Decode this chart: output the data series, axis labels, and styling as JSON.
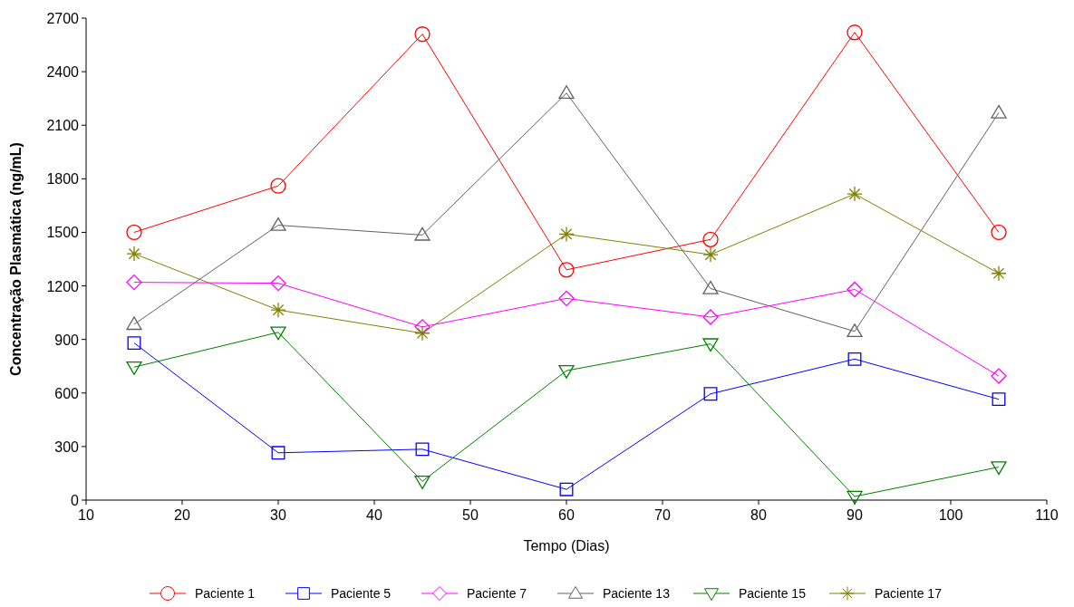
{
  "chart_data": {
    "type": "line",
    "xlabel": "Tempo (Dias)",
    "ylabel": "Concentração Plasmática (ng/mL)",
    "x": [
      15,
      30,
      45,
      60,
      75,
      90,
      105
    ],
    "xlim": [
      10,
      110
    ],
    "xticks": [
      10,
      20,
      30,
      40,
      50,
      60,
      70,
      80,
      90,
      100,
      110
    ],
    "ylim": [
      0,
      2700
    ],
    "yticks": [
      0,
      300,
      600,
      900,
      1200,
      1500,
      1800,
      2100,
      2400,
      2700
    ],
    "legend": "bottom",
    "grid": false,
    "series": [
      {
        "name": "Paciente 1",
        "color": "#ff0000",
        "marker": "circle",
        "values": [
          1500,
          1760,
          2610,
          1290,
          1460,
          2620,
          1500
        ]
      },
      {
        "name": "Paciente 5",
        "color": "#0000ff",
        "marker": "square",
        "values": [
          880,
          265,
          285,
          60,
          595,
          790,
          565
        ]
      },
      {
        "name": "Paciente 7",
        "color": "#ff00ff",
        "marker": "diamond",
        "values": [
          1220,
          1215,
          970,
          1130,
          1025,
          1180,
          695
        ]
      },
      {
        "name": "Paciente 13",
        "color": "#606060",
        "marker": "triangle",
        "values": [
          985,
          1540,
          1485,
          2280,
          1185,
          945,
          2170
        ]
      },
      {
        "name": "Paciente 15",
        "color": "#008000",
        "marker": "triangle-down",
        "values": [
          745,
          940,
          105,
          725,
          875,
          20,
          185
        ]
      },
      {
        "name": "Paciente 17",
        "color": "#808000",
        "marker": "cross",
        "values": [
          1380,
          1065,
          935,
          1490,
          1375,
          1715,
          1270
        ]
      }
    ]
  }
}
